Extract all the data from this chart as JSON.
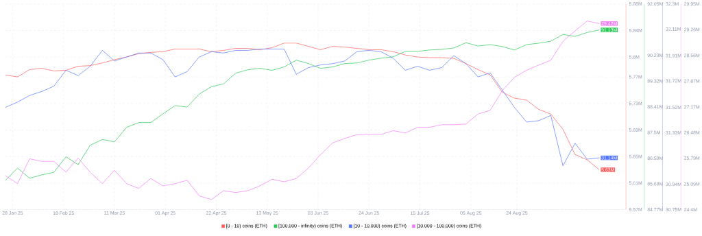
{
  "chart_data": [
    {
      "type": "line",
      "x": [
        "2025-01-25",
        "2025-01-30",
        "2025-02-04",
        "2025-02-09",
        "2025-02-14",
        "2025-02-19",
        "2025-02-24",
        "2025-03-01",
        "2025-03-06",
        "2025-03-11",
        "2025-03-16",
        "2025-03-21",
        "2025-03-26",
        "2025-03-31",
        "2025-04-05",
        "2025-04-10",
        "2025-04-15",
        "2025-04-20",
        "2025-04-25",
        "2025-04-30",
        "2025-05-05",
        "2025-05-10",
        "2025-05-15",
        "2025-05-20",
        "2025-05-25",
        "2025-05-30",
        "2025-06-04",
        "2025-06-09",
        "2025-06-14",
        "2025-06-19",
        "2025-06-24",
        "2025-06-29",
        "2025-07-04",
        "2025-07-09",
        "2025-07-14",
        "2025-07-19",
        "2025-07-24",
        "2025-07-29",
        "2025-08-03",
        "2025-08-08",
        "2025-08-13",
        "2025-08-18",
        "2025-08-23",
        "2025-08-28",
        "2025-09-02",
        "2025-09-07",
        "2025-09-12",
        "2025-09-17",
        "2025-09-22",
        "2025-09-27"
      ],
      "xlim": [
        "2025-01-25",
        "2025-10-08"
      ],
      "xticks": [
        {
          "value": "2025-01-28",
          "label": "28 Jan 25"
        },
        {
          "value": "2025-02-18",
          "label": "18 Feb 25"
        },
        {
          "value": "2025-03-11",
          "label": "11 Mar 25"
        },
        {
          "value": "2025-04-01",
          "label": "01 Apr 25"
        },
        {
          "value": "2025-04-22",
          "label": "22 Apr 25"
        },
        {
          "value": "2025-05-13",
          "label": "13 May 25"
        },
        {
          "value": "2025-06-03",
          "label": "03 Jun 25"
        },
        {
          "value": "2025-06-24",
          "label": "24 Jun 25"
        },
        {
          "value": "2025-07-15",
          "label": "15 Jul 25"
        },
        {
          "value": "2025-08-05",
          "label": "05 Aug 25"
        },
        {
          "value": "2025-08-24",
          "label": "24 Aug 25"
        }
      ],
      "ylim": [
        5.57,
        5.88
      ],
      "yticks": [
        {
          "value": 5.57,
          "label": "5.57M"
        },
        {
          "value": 5.61,
          "label": "5.61M"
        },
        {
          "value": 5.65,
          "label": "5.65M"
        },
        {
          "value": 5.69,
          "label": "5.69M"
        },
        {
          "value": 5.73,
          "label": "5.73M"
        },
        {
          "value": 5.77,
          "label": "5.77M"
        },
        {
          "value": 5.8,
          "label": "5.8M"
        },
        {
          "value": 5.84,
          "label": "5.84M"
        },
        {
          "value": 5.88,
          "label": "5.88M"
        }
      ],
      "y2lim": [
        84.77,
        92.05
      ],
      "y2ticks": [
        {
          "value": 84.77,
          "label": "84.77M"
        },
        {
          "value": 85.68,
          "label": "85.68M"
        },
        {
          "value": 86.59,
          "label": "86.59M"
        },
        {
          "value": 87.5,
          "label": "87.5M"
        },
        {
          "value": 88.41,
          "label": "88.41M"
        },
        {
          "value": 89.32,
          "label": "89.32M"
        },
        {
          "value": 90.23,
          "label": "90.23M"
        },
        {
          "value": 92.05,
          "label": "92.05M"
        }
      ],
      "y3lim": [
        30.75,
        32.3
      ],
      "y3ticks": [
        {
          "value": 30.75,
          "label": "30.75M"
        },
        {
          "value": 30.94,
          "label": "30.94M"
        },
        {
          "value": 31.33,
          "label": "31.33M"
        },
        {
          "value": 31.52,
          "label": "31.52M"
        },
        {
          "value": 31.72,
          "label": "31.72M"
        },
        {
          "value": 31.91,
          "label": "31.91M"
        },
        {
          "value": 32.11,
          "label": "32.11M"
        },
        {
          "value": 32.3,
          "label": "32.3M"
        }
      ],
      "grid": true,
      "legend": "bottom",
      "series": [
        {
          "name": "[0 - 10) coins (ETH)",
          "color": "#ff5b5b",
          "values": [
            5.773,
            5.77,
            5.781,
            5.783,
            5.779,
            5.78,
            5.786,
            5.787,
            5.791,
            5.796,
            5.8,
            5.805,
            5.807,
            5.808,
            5.812,
            5.812,
            5.812,
            5.808,
            5.81,
            5.813,
            5.813,
            5.811,
            5.814,
            5.821,
            5.821,
            5.816,
            5.811,
            5.816,
            5.815,
            5.813,
            5.811,
            5.811,
            5.808,
            5.803,
            5.8,
            5.799,
            5.799,
            5.798,
            5.79,
            5.781,
            5.773,
            5.747,
            5.738,
            5.735,
            5.721,
            5.714,
            5.691,
            5.653,
            5.645,
            5.63
          ],
          "value_labels": [
            null,
            null,
            null,
            null,
            null,
            null,
            null,
            null,
            null,
            null,
            null,
            null,
            null,
            null,
            null,
            null,
            null,
            null,
            null,
            null,
            null,
            null,
            null,
            null,
            null,
            null,
            null,
            null,
            null,
            null,
            null,
            null,
            null,
            null,
            null,
            null,
            null,
            null,
            null,
            null,
            null,
            null,
            null,
            null,
            null,
            null,
            null,
            null,
            null,
            "5.63M"
          ]
        },
        {
          "name": "[100,000  - infinity) coins (ETH)",
          "color": "#26c953",
          "axis": "y2",
          "values": [
            85.8,
            86.24,
            85.88,
            86.0,
            86.09,
            86.64,
            86.36,
            87.05,
            87.25,
            87.17,
            87.68,
            87.85,
            87.85,
            88.16,
            88.45,
            88.4,
            88.86,
            89.12,
            89.22,
            89.6,
            89.72,
            89.77,
            89.7,
            89.82,
            90.06,
            89.94,
            89.77,
            89.82,
            89.94,
            89.96,
            90.06,
            90.13,
            90.18,
            90.37,
            90.37,
            90.42,
            90.44,
            90.49,
            90.68,
            90.56,
            90.61,
            90.54,
            90.42,
            90.61,
            90.66,
            90.73,
            90.97,
            90.9,
            91.04,
            91.13
          ],
          "value_labels": [
            null,
            null,
            null,
            null,
            null,
            null,
            null,
            null,
            null,
            null,
            null,
            null,
            null,
            null,
            null,
            null,
            null,
            null,
            null,
            null,
            null,
            null,
            null,
            null,
            null,
            null,
            null,
            null,
            null,
            null,
            null,
            null,
            null,
            null,
            null,
            null,
            null,
            null,
            null,
            null,
            null,
            null,
            null,
            null,
            null,
            null,
            null,
            null,
            null,
            "91.13M"
          ]
        },
        {
          "name": "[10 - 10,000) coins (ETH)",
          "color": "#5275ff",
          "axis": "y3",
          "values": [
            31.52,
            31.56,
            31.61,
            31.64,
            31.68,
            31.8,
            31.76,
            31.83,
            31.95,
            31.87,
            31.9,
            31.93,
            31.93,
            31.88,
            31.75,
            31.79,
            31.9,
            31.94,
            31.93,
            31.95,
            31.95,
            31.96,
            31.96,
            31.96,
            31.77,
            31.82,
            31.84,
            31.85,
            31.87,
            31.94,
            31.95,
            31.94,
            31.89,
            31.8,
            31.83,
            31.8,
            31.82,
            31.91,
            31.85,
            31.75,
            31.78,
            31.65,
            31.52,
            31.41,
            31.42,
            31.46,
            31.08,
            31.25,
            31.13,
            31.14
          ],
          "value_labels": [
            null,
            null,
            null,
            null,
            null,
            null,
            null,
            null,
            null,
            null,
            null,
            null,
            null,
            null,
            null,
            null,
            null,
            null,
            null,
            null,
            null,
            null,
            null,
            null,
            null,
            null,
            null,
            null,
            null,
            null,
            null,
            null,
            null,
            null,
            null,
            null,
            null,
            null,
            null,
            null,
            null,
            null,
            null,
            null,
            null,
            null,
            null,
            null,
            null,
            "31.14M"
          ]
        }
      ]
    },
    {
      "type": "line",
      "x": [
        "2025-01-25",
        "2025-01-30",
        "2025-02-04",
        "2025-02-09",
        "2025-02-14",
        "2025-02-19",
        "2025-02-24",
        "2025-03-01",
        "2025-03-06",
        "2025-03-11",
        "2025-03-16",
        "2025-03-21",
        "2025-03-26",
        "2025-03-31",
        "2025-04-05",
        "2025-04-10",
        "2025-04-15",
        "2025-04-20",
        "2025-04-25",
        "2025-04-30",
        "2025-05-05",
        "2025-05-10",
        "2025-05-15",
        "2025-05-20",
        "2025-05-25",
        "2025-05-30",
        "2025-06-04",
        "2025-06-09",
        "2025-06-14",
        "2025-06-19",
        "2025-06-24",
        "2025-06-29",
        "2025-07-04",
        "2025-07-09",
        "2025-07-14",
        "2025-07-19",
        "2025-07-24",
        "2025-07-29",
        "2025-08-03",
        "2025-08-08",
        "2025-08-13",
        "2025-08-18",
        "2025-08-23",
        "2025-08-28",
        "2025-09-02",
        "2025-09-07",
        "2025-09-12",
        "2025-09-17",
        "2025-09-22",
        "2025-09-27"
      ],
      "xlim": [
        "2025-01-25",
        "2025-10-08"
      ],
      "ylim": [
        24.4,
        29.95
      ],
      "yticks": [
        {
          "value": 24.4,
          "label": "24.4M"
        },
        {
          "value": 25.09,
          "label": "25.09M"
        },
        {
          "value": 25.79,
          "label": "25.79M"
        },
        {
          "value": 26.48,
          "label": "26.48M"
        },
        {
          "value": 27.17,
          "label": "27.17M"
        },
        {
          "value": 27.87,
          "label": "27.87M"
        },
        {
          "value": 28.56,
          "label": "28.56M"
        },
        {
          "value": 29.26,
          "label": "29.26M"
        },
        {
          "value": 29.95,
          "label": "29.95M"
        }
      ],
      "tick_labels": "y",
      "legend": "bottom",
      "series": [
        {
          "name": "[10,000 - 100,000) coins (ETH)",
          "color": "#f47bf7",
          "values": [
            25.32,
            25.1,
            25.77,
            25.7,
            25.7,
            25.41,
            25.79,
            25.41,
            25.1,
            25.46,
            25.1,
            24.97,
            25.24,
            25.04,
            25.1,
            25.19,
            24.77,
            24.67,
            24.91,
            24.86,
            24.91,
            25.04,
            25.22,
            25.15,
            25.24,
            25.52,
            25.88,
            26.2,
            26.32,
            26.42,
            26.43,
            26.43,
            26.53,
            26.47,
            26.62,
            26.62,
            26.69,
            26.69,
            26.71,
            26.98,
            27.08,
            27.61,
            27.97,
            28.16,
            28.3,
            28.43,
            28.94,
            29.22,
            29.49,
            29.42
          ],
          "value_labels": [
            null,
            null,
            null,
            null,
            null,
            null,
            null,
            null,
            null,
            null,
            null,
            null,
            null,
            null,
            null,
            null,
            null,
            null,
            null,
            null,
            null,
            null,
            null,
            null,
            null,
            null,
            null,
            null,
            null,
            null,
            null,
            null,
            null,
            null,
            null,
            null,
            null,
            null,
            null,
            null,
            null,
            null,
            null,
            null,
            null,
            null,
            null,
            null,
            null,
            "29.42M"
          ]
        }
      ]
    }
  ]
}
